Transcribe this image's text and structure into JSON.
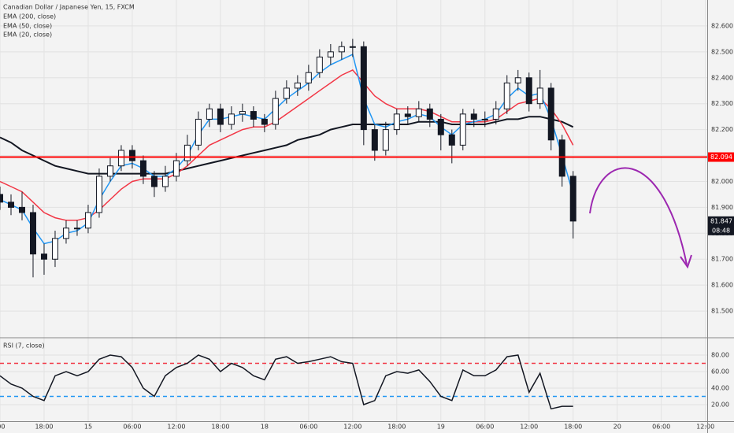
{
  "chart_data": [
    {
      "type": "candlestick",
      "title": "Canadian Dollar / Japanese Yen, 15, FXCM",
      "x": [
        0,
        6,
        12,
        18,
        24,
        30,
        36,
        42,
        48,
        54,
        60,
        66,
        72,
        78,
        84,
        90,
        96,
        102,
        108,
        114,
        120,
        126,
        132,
        138,
        144,
        150,
        156,
        162,
        168,
        174,
        180,
        186,
        192,
        198,
        204,
        210,
        216,
        222,
        228,
        234,
        240,
        246,
        252,
        258,
        264,
        270,
        276,
        282,
        288,
        294,
        300,
        306,
        312
      ],
      "open": [
        81.95,
        81.92,
        81.9,
        81.88,
        81.72,
        81.7,
        81.78,
        81.82,
        81.82,
        81.88,
        82.02,
        82.06,
        82.12,
        82.08,
        82.02,
        81.98,
        82.02,
        82.08,
        82.14,
        82.24,
        82.28,
        82.22,
        82.26,
        82.27,
        82.24,
        82.22,
        82.32,
        82.36,
        82.38,
        82.42,
        82.48,
        82.5,
        82.52,
        82.52,
        82.2,
        82.12,
        82.2,
        82.26,
        82.25,
        82.28,
        82.24,
        82.18,
        82.14,
        82.26,
        82.24,
        82.24,
        82.28,
        82.38,
        82.4,
        82.3,
        82.36,
        82.16,
        82.02
      ],
      "high": [
        81.98,
        81.95,
        81.96,
        81.91,
        81.76,
        81.81,
        81.85,
        81.85,
        81.91,
        82.05,
        82.09,
        82.14,
        82.14,
        82.1,
        82.04,
        82.06,
        82.11,
        82.18,
        82.27,
        82.3,
        82.3,
        82.29,
        82.3,
        82.29,
        82.26,
        82.35,
        82.39,
        82.41,
        82.45,
        82.51,
        82.53,
        82.54,
        82.55,
        82.54,
        82.22,
        82.23,
        82.28,
        82.29,
        82.31,
        82.3,
        82.26,
        82.2,
        82.28,
        82.28,
        82.27,
        82.31,
        82.41,
        82.43,
        82.42,
        82.43,
        82.38,
        82.18,
        82.04
      ],
      "low": [
        81.89,
        81.87,
        81.85,
        81.63,
        81.64,
        81.67,
        81.76,
        81.79,
        81.8,
        81.86,
        82.0,
        82.04,
        82.05,
        81.99,
        81.94,
        81.96,
        82.0,
        82.06,
        82.12,
        82.21,
        82.19,
        82.2,
        82.23,
        82.21,
        82.19,
        82.2,
        82.3,
        82.33,
        82.35,
        82.4,
        82.45,
        82.47,
        82.48,
        82.14,
        82.08,
        82.1,
        82.18,
        82.22,
        82.23,
        82.21,
        82.12,
        82.07,
        82.12,
        82.21,
        82.21,
        82.22,
        82.26,
        82.35,
        82.27,
        82.28,
        82.12,
        81.98,
        81.78
      ],
      "close": [
        81.92,
        81.9,
        81.88,
        81.72,
        81.7,
        81.78,
        81.82,
        81.82,
        81.88,
        82.02,
        82.06,
        82.12,
        82.08,
        82.02,
        81.98,
        82.02,
        82.08,
        82.14,
        82.24,
        82.28,
        82.22,
        82.26,
        82.27,
        82.24,
        82.22,
        82.32,
        82.36,
        82.38,
        82.42,
        82.48,
        82.5,
        82.52,
        82.52,
        82.2,
        82.12,
        82.2,
        82.26,
        82.25,
        82.28,
        82.24,
        82.18,
        82.14,
        82.26,
        82.24,
        82.24,
        82.28,
        82.38,
        82.4,
        82.3,
        82.36,
        82.16,
        82.02,
        81.847
      ],
      "up_color": "#ffffff",
      "down_color": "#131722",
      "lines": [
        {
          "name": "EMA (200, close)",
          "color": "#131722",
          "values": [
            82.17,
            82.15,
            82.12,
            82.1,
            82.08,
            82.06,
            82.05,
            82.04,
            82.03,
            82.03,
            82.03,
            82.03,
            82.03,
            82.03,
            82.03,
            82.03,
            82.04,
            82.05,
            82.06,
            82.07,
            82.08,
            82.09,
            82.1,
            82.11,
            82.12,
            82.13,
            82.14,
            82.16,
            82.17,
            82.18,
            82.2,
            82.21,
            82.22,
            82.22,
            82.22,
            82.22,
            82.22,
            82.22,
            82.23,
            82.23,
            82.23,
            82.22,
            82.22,
            82.22,
            82.22,
            82.23,
            82.24,
            82.24,
            82.25,
            82.25,
            82.24,
            82.23,
            82.21
          ]
        },
        {
          "name": "EMA (50, close)",
          "color": "#f23645",
          "values": [
            82.0,
            81.98,
            81.96,
            81.92,
            81.88,
            81.86,
            81.85,
            81.85,
            81.86,
            81.89,
            81.93,
            81.97,
            82.0,
            82.01,
            82.01,
            82.01,
            82.03,
            82.06,
            82.1,
            82.14,
            82.16,
            82.18,
            82.2,
            82.21,
            82.21,
            82.23,
            82.26,
            82.29,
            82.32,
            82.35,
            82.38,
            82.41,
            82.43,
            82.38,
            82.33,
            82.3,
            82.28,
            82.28,
            82.28,
            82.27,
            82.25,
            82.23,
            82.23,
            82.23,
            82.23,
            82.24,
            82.27,
            82.3,
            82.31,
            82.32,
            82.28,
            82.22,
            82.14
          ]
        },
        {
          "name": "EMA (20, close)",
          "color": "#2196f3",
          "values": [
            81.93,
            81.91,
            81.89,
            81.82,
            81.76,
            81.77,
            81.8,
            81.81,
            81.84,
            81.93,
            82.0,
            82.06,
            82.07,
            82.05,
            82.02,
            82.02,
            82.05,
            82.1,
            82.18,
            82.24,
            82.24,
            82.25,
            82.26,
            82.25,
            82.24,
            82.28,
            82.32,
            82.35,
            82.38,
            82.42,
            82.45,
            82.47,
            82.49,
            82.32,
            82.22,
            82.21,
            82.23,
            82.24,
            82.26,
            82.25,
            82.21,
            82.18,
            82.22,
            82.23,
            82.24,
            82.26,
            82.32,
            82.36,
            82.33,
            82.34,
            82.24,
            82.1,
            81.95
          ]
        }
      ],
      "hline": {
        "value": 82.094,
        "color": "#ff0000"
      },
      "last_price": 81.847,
      "countdown": "08:48",
      "xlim": [
        0,
        385
      ],
      "ylim": [
        81.4,
        82.7
      ],
      "yticks": [
        {
          "value": 81.5,
          "label": "81.500"
        },
        {
          "value": 81.6,
          "label": "81.600"
        },
        {
          "value": 81.7,
          "label": "81.700"
        },
        {
          "value": 81.8,
          "label": "81.800"
        },
        {
          "value": 81.9,
          "label": "81.900"
        },
        {
          "value": 82.0,
          "label": "82.000"
        },
        {
          "value": 82.1,
          "label": "82.100"
        },
        {
          "value": 82.2,
          "label": "82.200"
        },
        {
          "value": 82.3,
          "label": "82.300"
        },
        {
          "value": 82.4,
          "label": "82.400"
        },
        {
          "value": 82.5,
          "label": "82.500"
        },
        {
          "value": 82.6,
          "label": "82.600"
        }
      ]
    },
    {
      "type": "line",
      "title": "RSI (7, close)",
      "color": "#131722",
      "x": [
        0,
        6,
        12,
        18,
        24,
        30,
        36,
        42,
        48,
        54,
        60,
        66,
        72,
        78,
        84,
        90,
        96,
        102,
        108,
        114,
        120,
        126,
        132,
        138,
        144,
        150,
        156,
        162,
        168,
        174,
        180,
        186,
        192,
        198,
        204,
        210,
        216,
        222,
        228,
        234,
        240,
        246,
        252,
        258,
        264,
        270,
        276,
        282,
        288,
        294,
        300,
        306,
        312
      ],
      "values": [
        55,
        45,
        40,
        30,
        25,
        55,
        60,
        55,
        60,
        75,
        80,
        78,
        65,
        40,
        30,
        55,
        65,
        70,
        80,
        75,
        60,
        70,
        65,
        55,
        50,
        75,
        78,
        70,
        72,
        75,
        78,
        72,
        70,
        20,
        25,
        55,
        60,
        58,
        62,
        48,
        30,
        25,
        62,
        55,
        55,
        62,
        78,
        80,
        35,
        58,
        15,
        18,
        18
      ],
      "levels": [
        {
          "value": 70,
          "color": "#f23645"
        },
        {
          "value": 30,
          "color": "#2196f3"
        }
      ],
      "xlim": [
        0,
        385
      ],
      "ylim": [
        0,
        100
      ],
      "yticks": [
        {
          "value": 20,
          "label": "20.00"
        },
        {
          "value": 40,
          "label": "40.00"
        },
        {
          "value": 60,
          "label": "60.00"
        },
        {
          "value": 80,
          "label": "80.00"
        }
      ],
      "xticks": [
        {
          "value": 0,
          "label": ":00"
        },
        {
          "value": 24,
          "label": "18:00"
        },
        {
          "value": 48,
          "label": "15"
        },
        {
          "value": 72,
          "label": "06:00"
        },
        {
          "value": 96,
          "label": "12:00"
        },
        {
          "value": 120,
          "label": "18:00"
        },
        {
          "value": 144,
          "label": "18"
        },
        {
          "value": 168,
          "label": "06:00"
        },
        {
          "value": 192,
          "label": "12:00"
        },
        {
          "value": 216,
          "label": "18:00"
        },
        {
          "value": 240,
          "label": "19"
        },
        {
          "value": 264,
          "label": "06:00"
        },
        {
          "value": 288,
          "label": "12:00"
        },
        {
          "value": 312,
          "label": "18:00"
        },
        {
          "value": 336,
          "label": "20"
        },
        {
          "value": 360,
          "label": "06:00"
        },
        {
          "value": 384,
          "label": "12:00"
        }
      ]
    }
  ]
}
